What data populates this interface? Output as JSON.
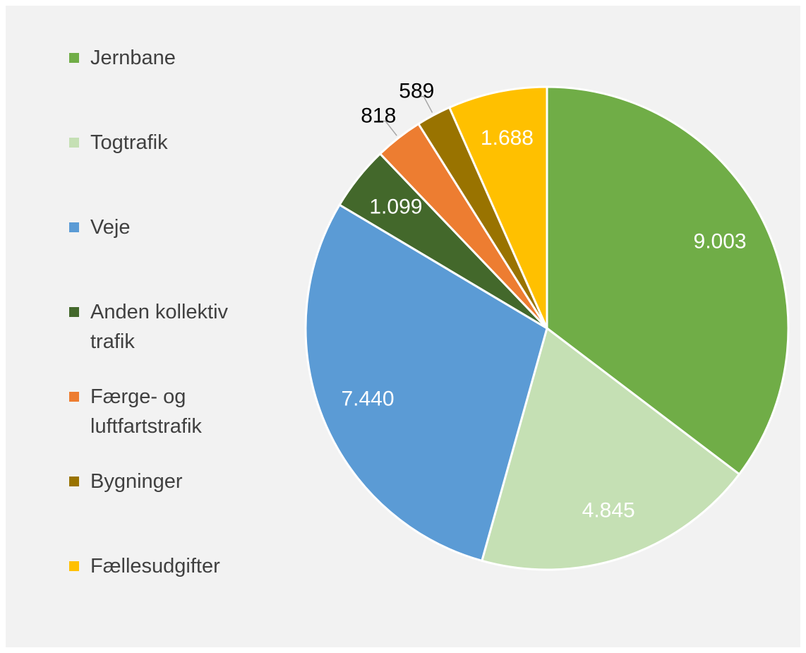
{
  "chart_data": {
    "type": "pie",
    "categories": [
      "Jernbane",
      "Togtrafik",
      "Veje",
      "Anden kollektiv trafik",
      "Færge- og luftfartstrafik",
      "Bygninger",
      "Fællesudgifter"
    ],
    "values": [
      9003,
      4845,
      7440,
      1099,
      818,
      589,
      1688
    ],
    "value_labels": [
      "9.003",
      "4.845",
      "7.440",
      "1.099",
      "818",
      "589",
      "1.688"
    ],
    "colors": [
      "#70ad47",
      "#c5e0b4",
      "#5b9bd5",
      "#43682b",
      "#ed7d31",
      "#997300",
      "#ffc000"
    ],
    "legend": "left"
  }
}
